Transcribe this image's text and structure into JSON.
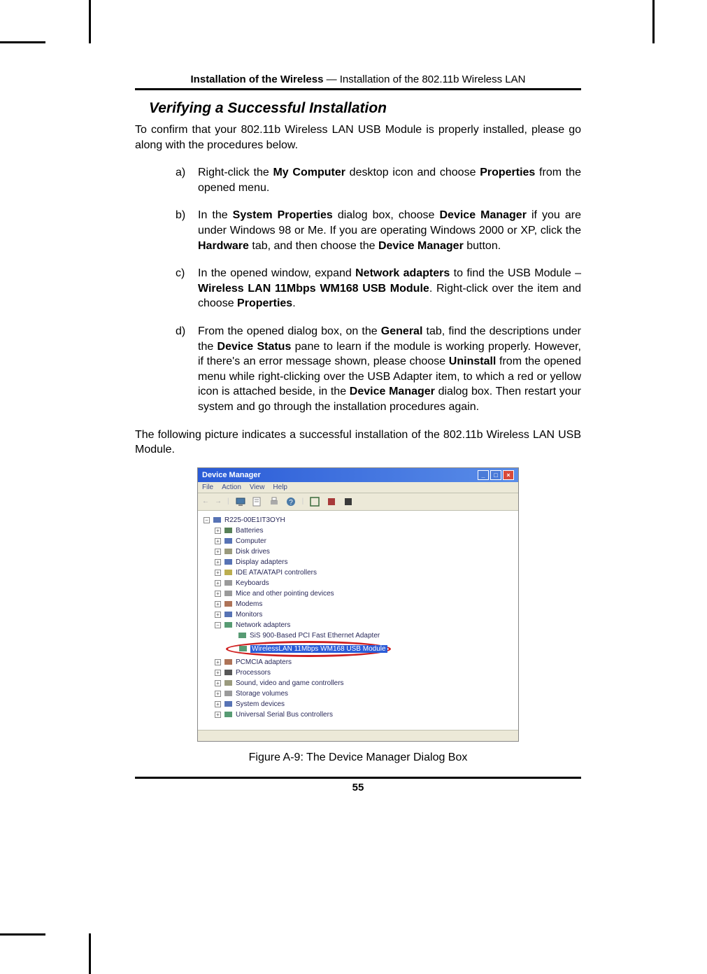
{
  "header": {
    "bold_part": "Installation of the Wireless",
    "sep": " — ",
    "plain_part": "Installation of the 802.11b Wireless LAN"
  },
  "section_title": "Verifying a Successful Installation",
  "intro": "To confirm that your 802.11b Wireless LAN USB Module is properly installed, please go along with the procedures below.",
  "steps": [
    {
      "marker": "a)",
      "parts": [
        {
          "t": "Right-click the ",
          "b": false
        },
        {
          "t": "My Computer",
          "b": true
        },
        {
          "t": " desktop icon and choose ",
          "b": false
        },
        {
          "t": "Properties",
          "b": true
        },
        {
          "t": " from the opened menu.",
          "b": false
        }
      ]
    },
    {
      "marker": "b)",
      "parts": [
        {
          "t": "In the ",
          "b": false
        },
        {
          "t": "System Properties",
          "b": true
        },
        {
          "t": " dialog box, choose ",
          "b": false
        },
        {
          "t": "Device Manager",
          "b": true
        },
        {
          "t": " if you are under Windows 98 or Me. If you are operating Windows 2000 or XP, click the ",
          "b": false
        },
        {
          "t": "Hardware",
          "b": true
        },
        {
          "t": " tab, and then choose the ",
          "b": false
        },
        {
          "t": "Device Manager",
          "b": true
        },
        {
          "t": " button.",
          "b": false
        }
      ]
    },
    {
      "marker": "c)",
      "parts": [
        {
          "t": "In the opened window, expand ",
          "b": false
        },
        {
          "t": "Network adapters",
          "b": true
        },
        {
          "t": " to find the USB Module – ",
          "b": false
        },
        {
          "t": "Wireless LAN 11Mbps WM168 USB Module",
          "b": true
        },
        {
          "t": ". Right-click over the item and choose ",
          "b": false
        },
        {
          "t": "Properties",
          "b": true
        },
        {
          "t": ".",
          "b": false
        }
      ]
    },
    {
      "marker": "d)",
      "parts": [
        {
          "t": "From the opened dialog box, on the ",
          "b": false
        },
        {
          "t": "General",
          "b": true
        },
        {
          "t": " tab, find the descriptions under the ",
          "b": false
        },
        {
          "t": "Device Status",
          "b": true
        },
        {
          "t": " pane to learn if the module is working properly. However, if there's an error message shown, please choose ",
          "b": false
        },
        {
          "t": "Uninstall",
          "b": true
        },
        {
          "t": " from the opened menu while right-clicking over the USB Adapter item, to which a red or yellow icon is attached beside, in the ",
          "b": false
        },
        {
          "t": "Device Manager",
          "b": true
        },
        {
          "t": " dialog box. Then restart your system and go through the installation procedures again.",
          "b": false
        }
      ]
    }
  ],
  "after_list": "The following picture indicates a successful installation of the 802.11b Wireless LAN USB Module.",
  "screenshot": {
    "title": "Device Manager",
    "menus": [
      "File",
      "Action",
      "View",
      "Help"
    ],
    "toolbar_icons": [
      "back-icon",
      "forward-icon",
      "up-icon",
      "properties-icon",
      "refresh-icon",
      "help-icon",
      "prop2-icon",
      "prop3-icon"
    ],
    "root": "R225-00E1IT3OYH",
    "nodes": [
      {
        "label": "Batteries",
        "icon_color": "#3a6a3a"
      },
      {
        "label": "Computer",
        "icon_color": "#3a5aa8"
      },
      {
        "label": "Disk drives",
        "icon_color": "#888866"
      },
      {
        "label": "Display adapters",
        "icon_color": "#3a5aa8"
      },
      {
        "label": "IDE ATA/ATAPI controllers",
        "icon_color": "#b0a030"
      },
      {
        "label": "Keyboards",
        "icon_color": "#888888"
      },
      {
        "label": "Mice and other pointing devices",
        "icon_color": "#888888"
      },
      {
        "label": "Modems",
        "icon_color": "#a05a3a"
      },
      {
        "label": "Monitors",
        "icon_color": "#3a5aa8"
      }
    ],
    "network_adapters_label": "Network adapters",
    "network_children": [
      {
        "label": "SiS 900-Based PCI Fast Ethernet Adapter",
        "highlight": false,
        "circled": false
      },
      {
        "label": "WirelessLAN 11Mbps WM168 USB Module",
        "highlight": true,
        "circled": true
      }
    ],
    "after_network": [
      {
        "label": "PCMCIA adapters",
        "icon_color": "#a05a3a"
      },
      {
        "label": "Processors",
        "icon_color": "#3a3a3a"
      },
      {
        "label": "Sound, video and game controllers",
        "icon_color": "#888866"
      },
      {
        "label": "Storage volumes",
        "icon_color": "#888888"
      },
      {
        "label": "System devices",
        "icon_color": "#3a5aa8"
      },
      {
        "label": "Universal Serial Bus controllers",
        "icon_color": "#3a8a5a"
      }
    ],
    "colors": {
      "titlebar_grad_start": "#2a5bd7",
      "titlebar_grad_end": "#5a8de8",
      "close_btn": "#d84a3a",
      "window_bg": "#ece9d8",
      "tree_bg": "#ffffff",
      "highlight_bg": "#2a5bd7",
      "ellipse": "#d02020"
    }
  },
  "figure_caption": "Figure A-9: The Device Manager Dialog Box",
  "page_number": "55"
}
